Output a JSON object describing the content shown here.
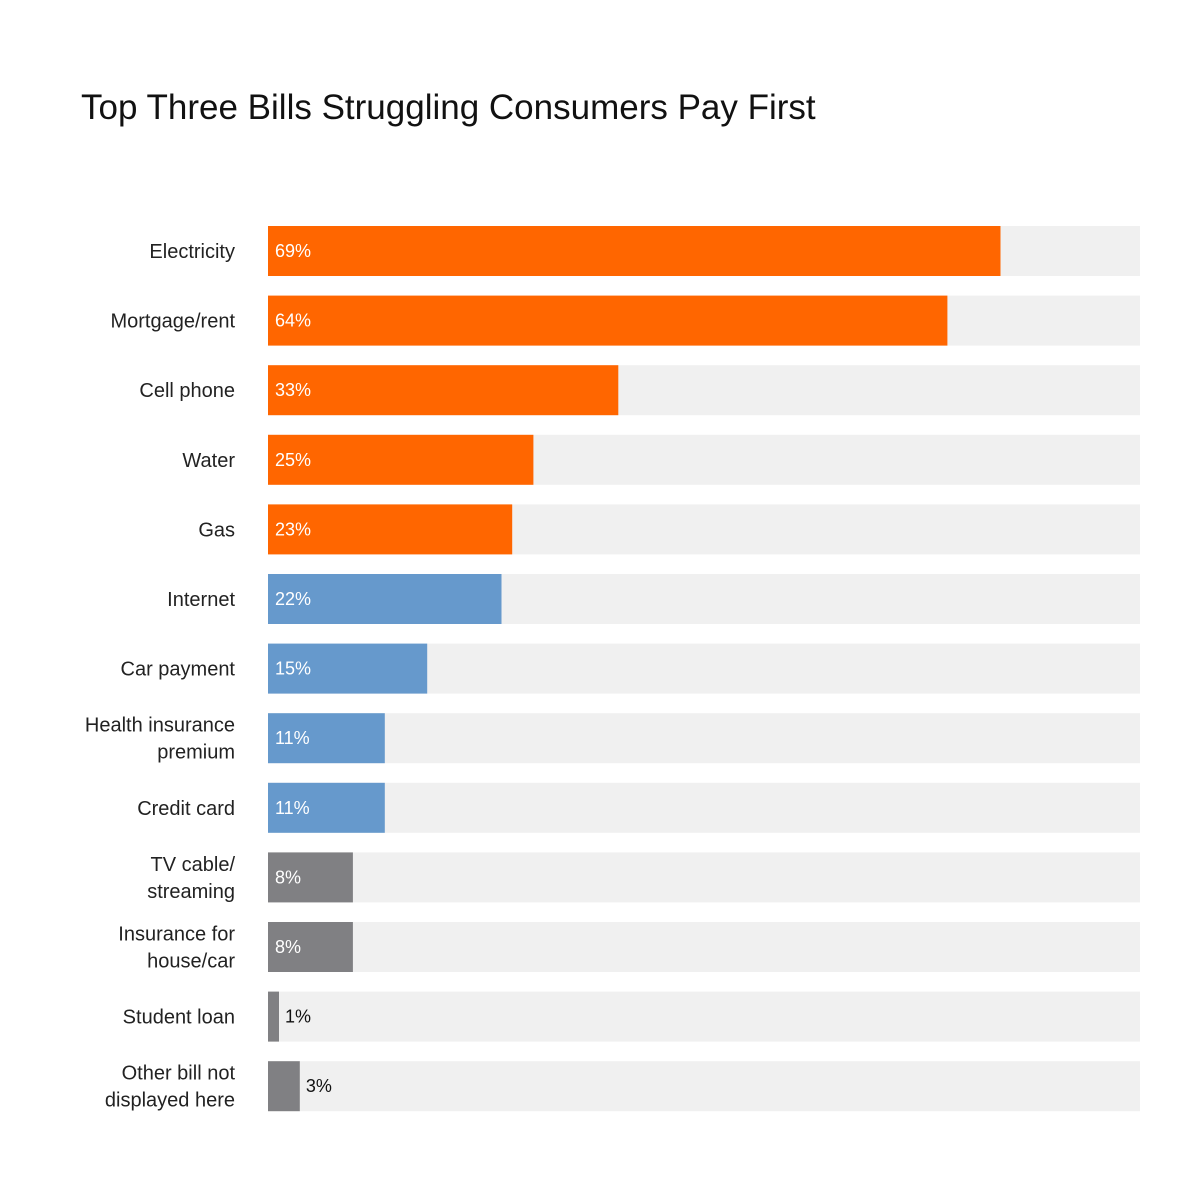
{
  "chart_data": {
    "type": "bar",
    "orientation": "horizontal",
    "title": "Top Three Bills Struggling Consumers Pay First",
    "categories": [
      "Electricity",
      "Mortgage/rent",
      "Cell phone",
      "Water",
      "Gas",
      "Internet",
      "Car payment",
      "Health insurance premium",
      "Credit card",
      "TV cable/ streaming",
      "Insurance for house/car",
      "Student loan",
      "Other bill not displayed here"
    ],
    "category_lines": [
      [
        "Electricity"
      ],
      [
        "Mortgage/rent"
      ],
      [
        "Cell phone"
      ],
      [
        "Water"
      ],
      [
        "Gas"
      ],
      [
        "Internet"
      ],
      [
        "Car payment"
      ],
      [
        "Health insurance",
        "premium"
      ],
      [
        "Credit card"
      ],
      [
        "TV cable/",
        "streaming"
      ],
      [
        "Insurance for",
        "house/car"
      ],
      [
        "Student loan"
      ],
      [
        "Other bill not",
        "displayed here"
      ]
    ],
    "values": [
      69,
      64,
      33,
      25,
      23,
      22,
      15,
      11,
      11,
      8,
      8,
      1,
      3
    ],
    "value_labels": [
      "69%",
      "64%",
      "33%",
      "25%",
      "23%",
      "22%",
      "15%",
      "11%",
      "11%",
      "8%",
      "8%",
      "1%",
      "3%"
    ],
    "unit": "%",
    "bar_groups": [
      "top",
      "top",
      "top",
      "top",
      "top",
      "mid",
      "mid",
      "mid",
      "mid",
      "low",
      "low",
      "low",
      "low"
    ],
    "colors": {
      "top": "#ff6600",
      "mid": "#6699cc",
      "low": "#808083",
      "track": "#f0f0f0",
      "label_inside": "#ffffff",
      "label_outside": "#111111"
    },
    "legend": "none",
    "grid": false,
    "xlabel": "",
    "ylabel": ""
  }
}
